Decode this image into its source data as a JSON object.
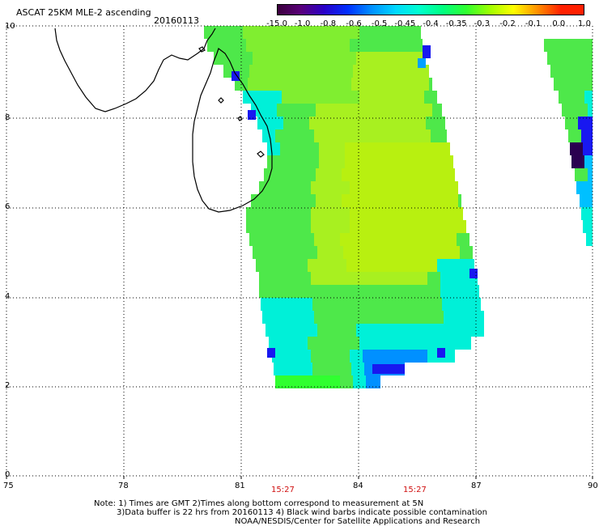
{
  "header": {
    "title": "ASCAT 25KM MLE-2 ascending",
    "date": "20160113"
  },
  "colorbar": {
    "labels": [
      "-15.0",
      "-1.0",
      "-0.8",
      "-0.6",
      "-0.5",
      "-0.45",
      "-0.4",
      "-0.35",
      "-0.3",
      "-0.2",
      "-0.1",
      "0.0",
      "1.0"
    ],
    "colors": [
      "#3a003a",
      "#5a007a",
      "#2a00c8",
      "#0030ff",
      "#0090ff",
      "#00d8ff",
      "#00ffd0",
      "#00ff80",
      "#30ff30",
      "#a0ff00",
      "#ffff00",
      "#ff9000",
      "#ff2000"
    ]
  },
  "axes": {
    "x_ticks": [
      "75",
      "78",
      "81",
      "84",
      "87",
      "90"
    ],
    "y_ticks": [
      "10",
      "8",
      "6",
      "4",
      "2",
      "0"
    ]
  },
  "times": [
    "15:27",
    "15:27"
  ],
  "notes": {
    "line1": "Note: 1) Times are GMT 2)Times along bottom correspond to measurement at 5N",
    "line2": "3)Data buffer is 22 hrs from 20160113 4) Black wind barbs indicate possible contamination",
    "line3": "NOAA/NESDIS/Center for Satellite Applications and Research"
  },
  "palette": {
    "green": "#4ee84a",
    "lime": "#a8f020",
    "cyan": "#00f0d8",
    "blue": "#1818f0",
    "navy": "#2a0050",
    "teal": "#00c0ff"
  }
}
